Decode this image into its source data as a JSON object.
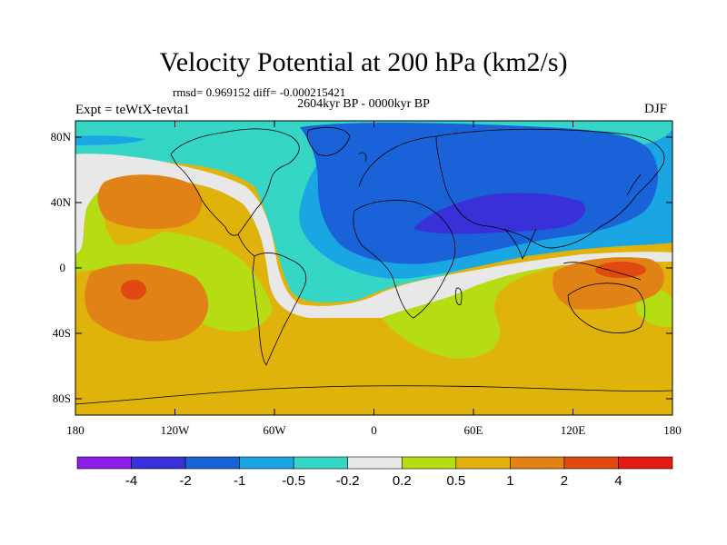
{
  "header": {
    "title": "Velocity Potential at 200 hPa (km2/s)",
    "stats": "rmsd= 0.969152 diff= -0.000215421",
    "period": "2604kyr BP - 0000kyr BP",
    "experiment": "Expt = teWtX-tevta1",
    "season": "DJF"
  },
  "axes": {
    "y_ticks": [
      "80N",
      "40N",
      "0",
      "40S",
      "80S"
    ],
    "x_ticks": [
      "180",
      "120W",
      "60W",
      "0",
      "60E",
      "120E",
      "180"
    ]
  },
  "colorbar": {
    "labels": [
      "-4",
      "-2",
      "-1",
      "-0.5",
      "-0.2",
      "0.2",
      "0.5",
      "1",
      "2",
      "4"
    ],
    "colors": [
      "#8a1ee8",
      "#3a30d8",
      "#1a62d8",
      "#1aa6e2",
      "#35d6c6",
      "#e8e8e8",
      "#b6dd14",
      "#e0b20c",
      "#e08216",
      "#e04a10",
      "#e41a14"
    ]
  },
  "chart_data": {
    "type": "filled-contour-map",
    "variable": "Velocity Potential at 200 hPa (km2/s)",
    "levels": [
      -4,
      -2,
      -1,
      -0.5,
      -0.2,
      0.2,
      0.5,
      1,
      2,
      4
    ],
    "lon_range": [
      -180,
      180
    ],
    "lat_range": [
      -90,
      90
    ],
    "projection": "cylindrical equidistant"
  }
}
